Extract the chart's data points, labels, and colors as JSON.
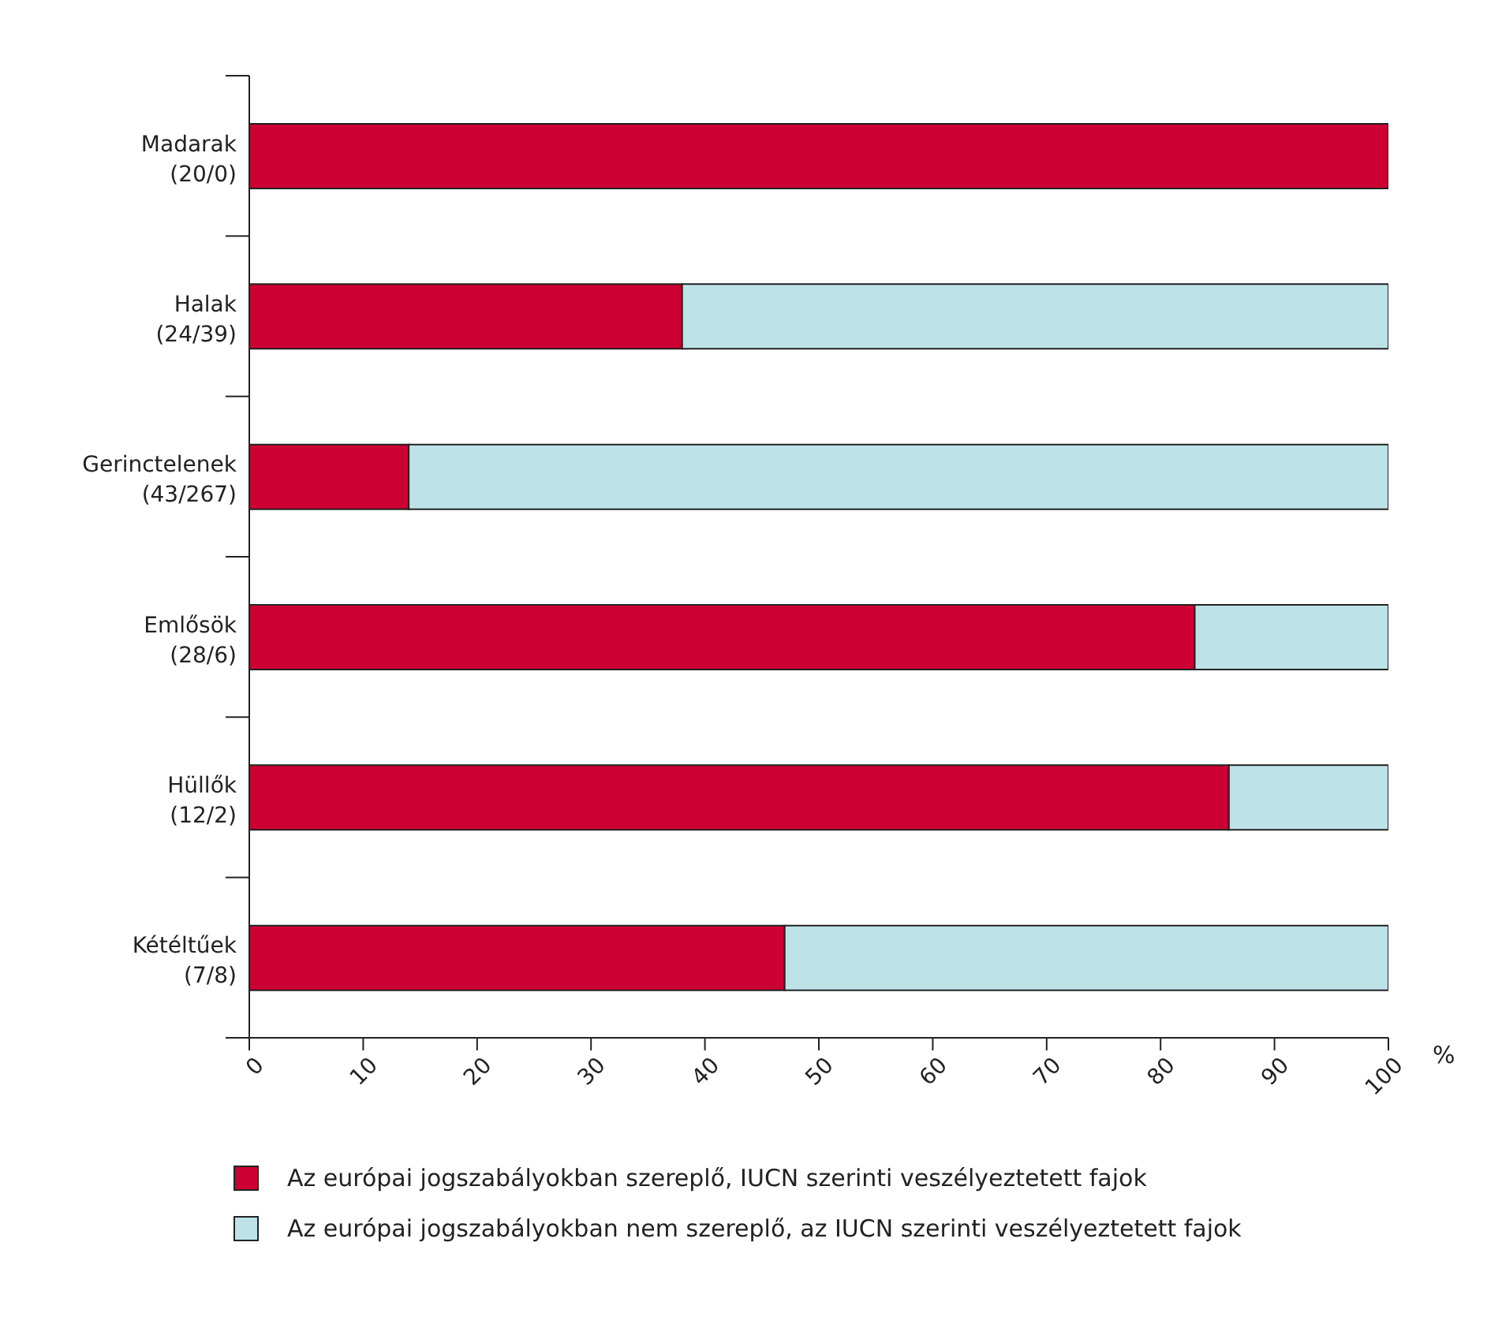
{
  "chart_data": {
    "type": "bar",
    "orientation": "horizontal",
    "stacked": true,
    "xlabel": "%",
    "categories": [
      "Madarak (20/0)",
      "Halak (24/39)",
      "Gerinctelenek (43/267)",
      "Emlősök (28/6)",
      "Hüllők (12/2)",
      "Kétéltűek (7/8)"
    ],
    "series": [
      {
        "name": "Az európai jogszabályokban szereplő, IUCN szerinti veszélyeztetett fajok",
        "color": "#cc0033",
        "values": [
          100,
          38,
          14,
          83,
          86,
          47
        ]
      },
      {
        "name": "Az európai jogszabályokban nem szereplő, az IUCN szerinti veszélyeztetett fajok",
        "color": "#bde3e8",
        "values": [
          0,
          62,
          86,
          17,
          14,
          53
        ]
      }
    ],
    "xlim": [
      0,
      100
    ],
    "xticks": [
      0,
      10,
      20,
      30,
      40,
      50,
      60,
      70,
      80,
      90,
      100
    ],
    "legend": "bottom"
  }
}
